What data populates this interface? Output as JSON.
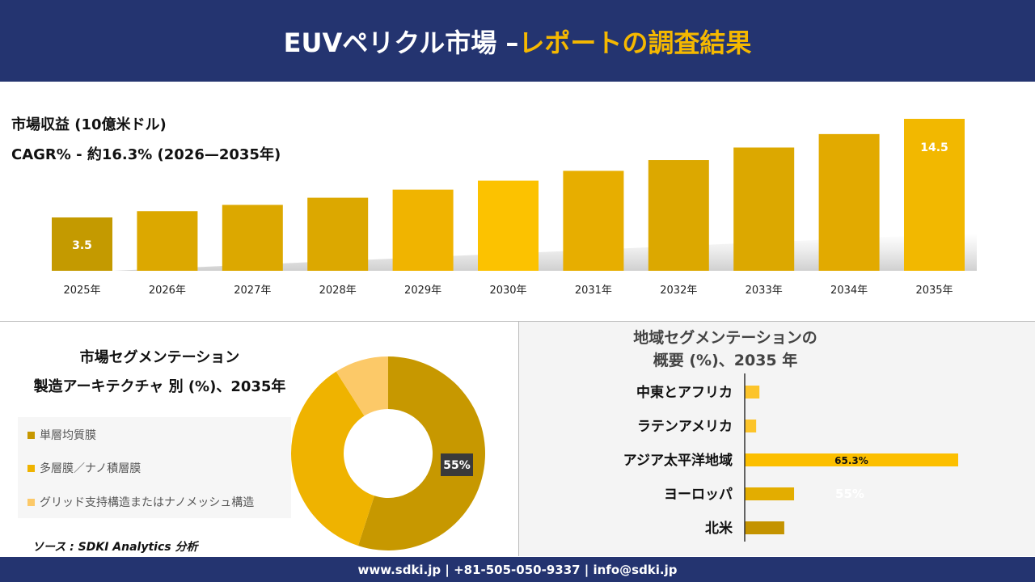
{
  "header": {
    "title_main": "EUVペリクル市場 –",
    "title_highlight": "レポートの調査結果"
  },
  "top": {
    "metric": "市場収益 (10億米ドル)",
    "cagr": "CAGR% - 約16.3% (2026—2035年)"
  },
  "chart_data": [
    {
      "type": "bar",
      "categories": [
        "2025年",
        "2026年",
        "2027年",
        "2028年",
        "2029年",
        "2030年",
        "2031年",
        "2032年",
        "2033年",
        "2034年",
        "2035年"
      ],
      "values": [
        3.5,
        4.2,
        4.9,
        5.7,
        6.6,
        7.6,
        8.7,
        9.9,
        11.3,
        12.8,
        14.5
      ],
      "data_labels": {
        "0": "3.5",
        "10": "14.5"
      },
      "colors": [
        "#c49a00",
        "#dca800",
        "#dca800",
        "#dca800",
        "#f0b400",
        "#fcc200",
        "#e7ae00",
        "#dca800",
        "#dca800",
        "#e2aa00",
        "#f2b800"
      ]
    },
    {
      "type": "pie",
      "title": "市場セグメンテーション 製造アーキテクチャ 別 (%)、2035年",
      "categories": [
        "単層均質膜",
        "多層膜／ナノ積層膜",
        "グリッド支持構造またはナノメッシュ構造"
      ],
      "values": [
        55,
        36,
        9
      ],
      "data_labels": {
        "0": "55%"
      },
      "colors": [
        "#c79800",
        "#efb300",
        "#fcc968"
      ]
    },
    {
      "type": "bar",
      "orientation": "horizontal",
      "title": "地域セグメンテーションの 概要 (%)、2035 年",
      "categories": [
        "中東とアフリカ",
        "ラテンアメリカ",
        "アジア太平洋地域",
        "ヨーロッパ",
        "北米"
      ],
      "values": [
        4.5,
        3.5,
        65.3,
        15.1,
        12.1
      ],
      "data_labels": {
        "2": "65.3%"
      },
      "overlay_label": "55%",
      "colors": [
        "#fcc42a",
        "#fcc42a",
        "#fcbf00",
        "#e3ad00",
        "#c49300"
      ]
    }
  ],
  "segment": {
    "title_line1": "市場セグメンテーション",
    "title_line2": "製造アーキテクチャ 別 (%)、2035年"
  },
  "region": {
    "title_line1": "地域セグメンテーションの",
    "title_line2": "概要 (%)、2035 年"
  },
  "source": "ソース : SDKI Analytics 分析",
  "footer": "www.sdki.jp | +81-505-050-9337 | info@sdki.jp"
}
